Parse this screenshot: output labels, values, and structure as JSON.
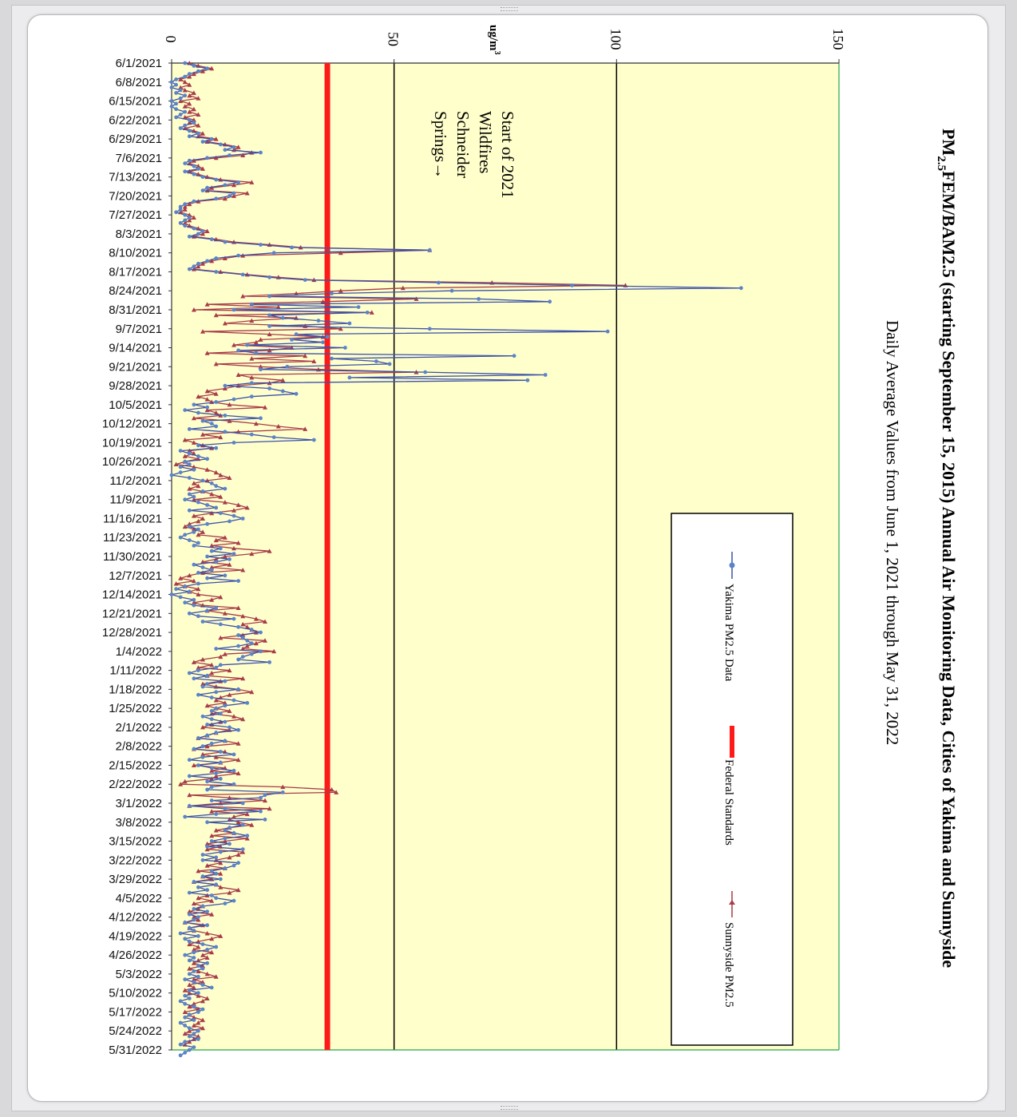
{
  "chart_data": {
    "type": "line",
    "title_main": "PM",
    "title_sub": "2.5",
    "title_rest": "FEM/BAM2.5 (starting September 15, 2015) Annual Air Monitoring Data, Cities of Yakima and Sunnyside",
    "subtitle": "Daily Average Values from June 1, 2021 through May 31, 2022",
    "unit_label_main": "ug/m",
    "unit_label_sup": "3",
    "ylim": [
      0,
      150
    ],
    "yticks": [
      0,
      50,
      100,
      150
    ],
    "gridlines": [
      50,
      100
    ],
    "xticks": [
      "6/1/2021",
      "6/8/2021",
      "6/15/2021",
      "6/22/2021",
      "6/29/2021",
      "7/6/2021",
      "7/13/2021",
      "7/20/2021",
      "7/27/2021",
      "8/3/2021",
      "8/10/2021",
      "8/17/2021",
      "8/24/2021",
      "8/31/2021",
      "9/7/2021",
      "9/14/2021",
      "9/21/2021",
      "9/28/2021",
      "10/5/2021",
      "10/12/2021",
      "10/19/2021",
      "10/26/2021",
      "11/2/2021",
      "11/9/2021",
      "11/16/2021",
      "11/23/2021",
      "11/30/2021",
      "12/7/2021",
      "12/14/2021",
      "12/21/2021",
      "12/28/2021",
      "1/4/2022",
      "1/11/2022",
      "1/18/2022",
      "1/25/2022",
      "2/1/2022",
      "2/8/2022",
      "2/15/2022",
      "2/22/2022",
      "3/1/2022",
      "3/8/2022",
      "3/15/2022",
      "3/22/2022",
      "3/29/2022",
      "4/5/2022",
      "4/12/2022",
      "4/19/2022",
      "4/26/2022",
      "5/3/2022",
      "5/10/2022",
      "5/17/2022",
      "5/24/2022",
      "5/31/2022"
    ],
    "federal_standard": 35,
    "annotation": [
      "Start of 2021",
      "Wildfires",
      "Schneider",
      "Springs→"
    ],
    "legend": {
      "placement": "right",
      "items": [
        "Yakima PM2.5 Data",
        "Federal Standards",
        "Sunnyside PM2.5"
      ]
    },
    "colors": {
      "yakima": "#3d52a8",
      "yakima_marker": "#5a84c8",
      "sunnyside": "#a83c48",
      "federal": "#ff1a1a",
      "plot_bg": "#ffffcc",
      "grid": "#000000",
      "axis": "#21a84a"
    },
    "series": [
      {
        "name": "Yakima PM2.5 Data",
        "values": [
          3,
          5,
          8,
          6,
          4,
          3,
          1,
          0,
          1,
          0,
          2,
          1,
          3,
          2,
          0,
          1,
          0,
          1,
          3,
          2,
          1,
          4,
          5,
          3,
          2,
          4,
          6,
          4,
          9,
          7,
          11,
          14,
          12,
          20,
          13,
          8,
          4,
          3,
          5,
          6,
          3,
          5,
          7,
          10,
          15,
          12,
          8,
          7,
          14,
          13,
          10,
          5,
          3,
          2,
          2,
          1,
          3,
          4,
          3,
          2,
          3,
          5,
          7,
          6,
          4,
          9,
          12,
          20,
          27,
          58,
          23,
          15,
          10,
          8,
          6,
          5,
          4,
          10,
          16,
          22,
          30,
          60,
          90,
          128,
          63,
          36,
          22,
          69,
          85,
          18,
          42,
          14,
          44,
          22,
          25,
          33,
          40,
          22,
          58,
          98,
          28,
          35,
          27,
          34,
          17,
          39,
          15,
          19,
          77,
          36,
          46,
          49,
          26,
          20,
          57,
          84,
          40,
          80,
          18,
          12,
          22,
          25,
          28,
          18,
          14,
          10,
          5,
          8,
          3,
          6,
          12,
          20,
          7,
          9,
          10,
          4,
          12,
          18,
          23,
          32,
          14,
          6,
          10,
          2,
          4,
          6,
          8,
          3,
          4,
          2,
          5,
          2,
          0,
          4,
          7,
          9,
          10,
          12,
          7,
          4,
          5,
          3,
          6,
          8,
          10,
          4,
          11,
          14,
          16,
          13,
          8,
          4,
          6,
          5,
          3,
          2,
          4,
          6,
          5,
          11,
          9,
          14,
          8,
          13,
          10,
          5,
          7,
          9,
          6,
          12,
          8,
          15,
          6,
          3,
          1,
          4,
          0,
          2,
          5,
          3,
          5,
          10,
          8,
          4,
          6,
          14,
          7,
          11,
          15,
          18,
          20,
          15,
          16,
          17,
          18,
          15,
          10,
          20,
          18,
          16,
          15,
          22,
          11,
          10,
          6,
          4,
          8,
          5,
          12,
          8,
          7,
          15,
          10,
          6,
          9,
          14,
          17,
          12,
          10,
          9,
          11,
          7,
          9,
          12,
          8,
          13,
          15,
          10,
          8,
          6,
          12,
          9,
          7,
          5,
          11,
          14,
          7,
          4,
          11,
          6,
          9,
          14,
          10,
          4,
          11,
          8,
          14,
          9,
          8,
          25,
          21,
          20,
          9,
          16,
          4,
          12,
          20,
          10,
          3,
          21,
          8,
          16,
          13,
          12,
          14,
          17,
          12,
          9,
          13,
          8,
          16,
          11,
          7,
          10,
          7,
          15,
          14,
          12,
          9,
          10,
          7,
          11,
          5,
          10,
          6,
          8,
          4,
          9,
          10,
          14,
          12,
          7,
          5,
          8,
          4,
          6,
          5,
          3,
          8,
          4,
          5,
          2,
          6,
          3,
          4,
          7,
          10,
          8,
          5,
          3,
          5,
          4,
          8,
          6,
          7,
          5,
          4,
          6,
          3,
          5,
          7,
          9,
          4,
          6,
          3,
          4,
          2,
          3,
          5,
          7,
          6,
          4,
          3,
          5,
          2,
          3,
          4,
          6,
          5,
          4,
          6,
          3,
          2,
          5,
          4,
          3,
          2
        ]
      },
      {
        "name": "Sunnyside PM2.5",
        "values": [
          4,
          6,
          9,
          7,
          5,
          4,
          2,
          3,
          4,
          2,
          3,
          5,
          4,
          6,
          2,
          4,
          3,
          5,
          4,
          6,
          3,
          5,
          4,
          6,
          3,
          5,
          7,
          6,
          10,
          8,
          12,
          15,
          14,
          18,
          16,
          10,
          5,
          4,
          6,
          7,
          4,
          6,
          8,
          11,
          18,
          14,
          9,
          8,
          17,
          14,
          12,
          6,
          4,
          3,
          3,
          2,
          4,
          5,
          4,
          3,
          4,
          6,
          8,
          7,
          5,
          10,
          14,
          22,
          29,
          58,
          38,
          16,
          12,
          9,
          7,
          6,
          5,
          11,
          17,
          24,
          32,
          72,
          102,
          52,
          38,
          28,
          16,
          55,
          34,
          8,
          24,
          5,
          45,
          10,
          28,
          18,
          12,
          30,
          38,
          7,
          22,
          34,
          20,
          19,
          14,
          27,
          22,
          8,
          30,
          18,
          32,
          10,
          20,
          33,
          55,
          15,
          18,
          25,
          22,
          15,
          12,
          8,
          10,
          6,
          8,
          9,
          13,
          21,
          8,
          10,
          11,
          5,
          13,
          19,
          24,
          30,
          15,
          7,
          11,
          3,
          5,
          7,
          9,
          4,
          5,
          3,
          6,
          3,
          1,
          5,
          8,
          10,
          11,
          13,
          8,
          5,
          6,
          4,
          7,
          9,
          11,
          5,
          12,
          15,
          17,
          14,
          9,
          5,
          7,
          6,
          4,
          3,
          5,
          7,
          6,
          12,
          10,
          15,
          9,
          14,
          22,
          18,
          12,
          10,
          7,
          13,
          9,
          16,
          7,
          4,
          2,
          5,
          1,
          3,
          6,
          4,
          6,
          11,
          9,
          5,
          7,
          15,
          8,
          12,
          16,
          19,
          21,
          16,
          17,
          18,
          19,
          16,
          11,
          21,
          19,
          17,
          16,
          23,
          12,
          11,
          7,
          5,
          9,
          6,
          13,
          9,
          8,
          16,
          11,
          7,
          10,
          15,
          18,
          13,
          11,
          10,
          12,
          8,
          10,
          13,
          9,
          14,
          16,
          11,
          9,
          7,
          13,
          10,
          8,
          6,
          12,
          15,
          8,
          5,
          12,
          7,
          10,
          15,
          11,
          5,
          12,
          9,
          15,
          10,
          9,
          3,
          2,
          25,
          36,
          37,
          4,
          13,
          21,
          11,
          4,
          22,
          9,
          17,
          14,
          13,
          15,
          18,
          13,
          10,
          14,
          9,
          17,
          12,
          8,
          11,
          8,
          16,
          15,
          13,
          10,
          11,
          8,
          12,
          6,
          11,
          7,
          9,
          5,
          10,
          11,
          15,
          13,
          8,
          6,
          9,
          5,
          7,
          6,
          4,
          9,
          5,
          6,
          3,
          7,
          4,
          5,
          8,
          11,
          9,
          6,
          4,
          6,
          5,
          9,
          7,
          8,
          6,
          5,
          7,
          4,
          6,
          8,
          10,
          5,
          7,
          4,
          5,
          3,
          4,
          6,
          8,
          7,
          5,
          4,
          6,
          3,
          4,
          5,
          7,
          6,
          5,
          7,
          4,
          3,
          6,
          5,
          4,
          3
        ]
      }
    ]
  }
}
